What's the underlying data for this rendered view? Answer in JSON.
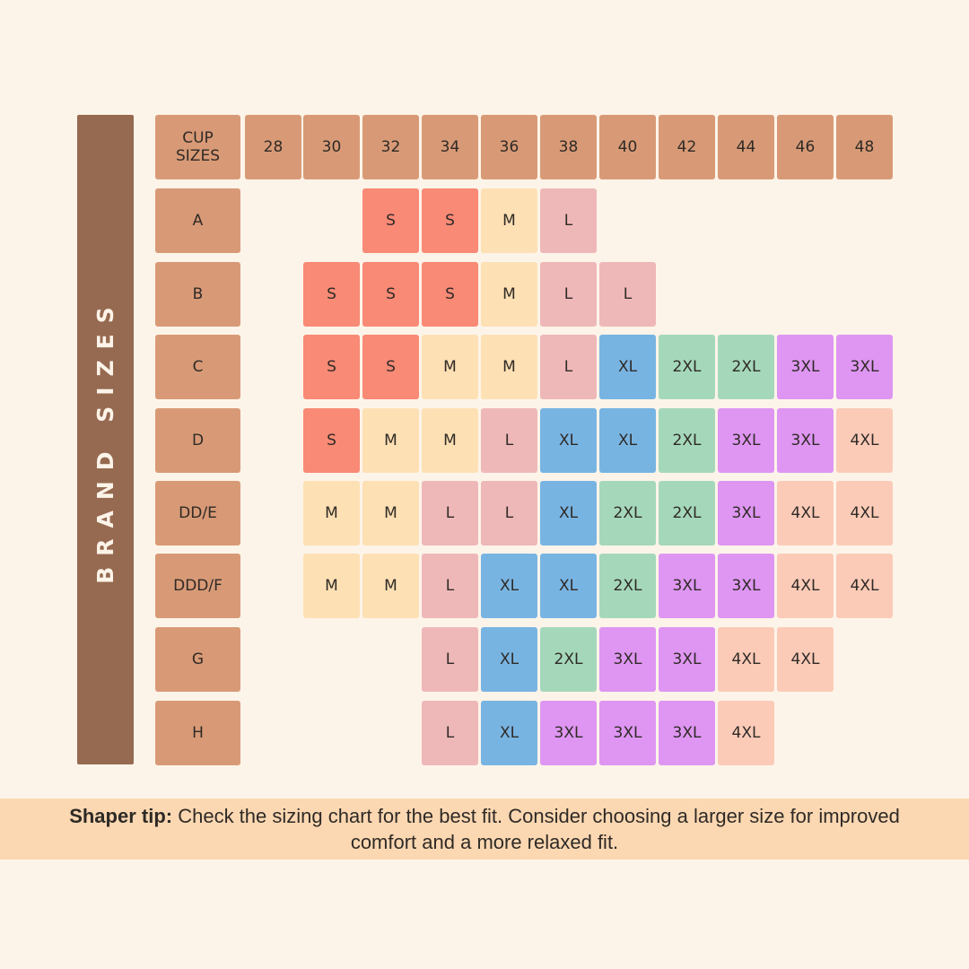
{
  "side_label": "BRAND SIZES",
  "header": {
    "corner_label": "CUP\nSIZES",
    "band_sizes": [
      "28",
      "30",
      "32",
      "34",
      "36",
      "38",
      "40",
      "42",
      "44",
      "46",
      "48"
    ]
  },
  "rows": [
    {
      "cup": "A",
      "sizes": [
        "",
        "",
        "S",
        "S",
        "M",
        "L",
        "",
        "",
        "",
        "",
        ""
      ]
    },
    {
      "cup": "B",
      "sizes": [
        "",
        "S",
        "S",
        "S",
        "M",
        "L",
        "L",
        "",
        "",
        "",
        ""
      ]
    },
    {
      "cup": "C",
      "sizes": [
        "",
        "S",
        "S",
        "M",
        "M",
        "L",
        "XL",
        "2XL",
        "2XL",
        "3XL",
        "3XL"
      ]
    },
    {
      "cup": "D",
      "sizes": [
        "",
        "S",
        "M",
        "M",
        "L",
        "XL",
        "XL",
        "2XL",
        "3XL",
        "3XL",
        "4XL"
      ]
    },
    {
      "cup": "DD/E",
      "sizes": [
        "",
        "M",
        "M",
        "L",
        "L",
        "XL",
        "2XL",
        "2XL",
        "3XL",
        "4XL",
        "4XL"
      ]
    },
    {
      "cup": "DDD/F",
      "sizes": [
        "",
        "M",
        "M",
        "L",
        "XL",
        "XL",
        "2XL",
        "3XL",
        "3XL",
        "4XL",
        "4XL"
      ]
    },
    {
      "cup": "G",
      "sizes": [
        "",
        "",
        "",
        "L",
        "XL",
        "2XL",
        "3XL",
        "3XL",
        "4XL",
        "4XL",
        ""
      ]
    },
    {
      "cup": "H",
      "sizes": [
        "",
        "",
        "",
        "L",
        "XL",
        "3XL",
        "3XL",
        "3XL",
        "4XL",
        "",
        ""
      ]
    }
  ],
  "tip": {
    "label": "Shaper tip:",
    "text": " Check the sizing chart for the best fit. Consider choosing a larger size for improved comfort and a more relaxed fit."
  },
  "colors": {
    "background": "#fdf4e9",
    "side_bar": "#966a51",
    "header_cell": "#d89a76",
    "S": "#f88a76",
    "M": "#fde0b4",
    "L": "#efb8b8",
    "XL": "#78b4e2",
    "2XL": "#a5d8bb",
    "3XL": "#de96f2",
    "4XL": "#fbcbb8",
    "tip_band": "#fcd8b2"
  }
}
